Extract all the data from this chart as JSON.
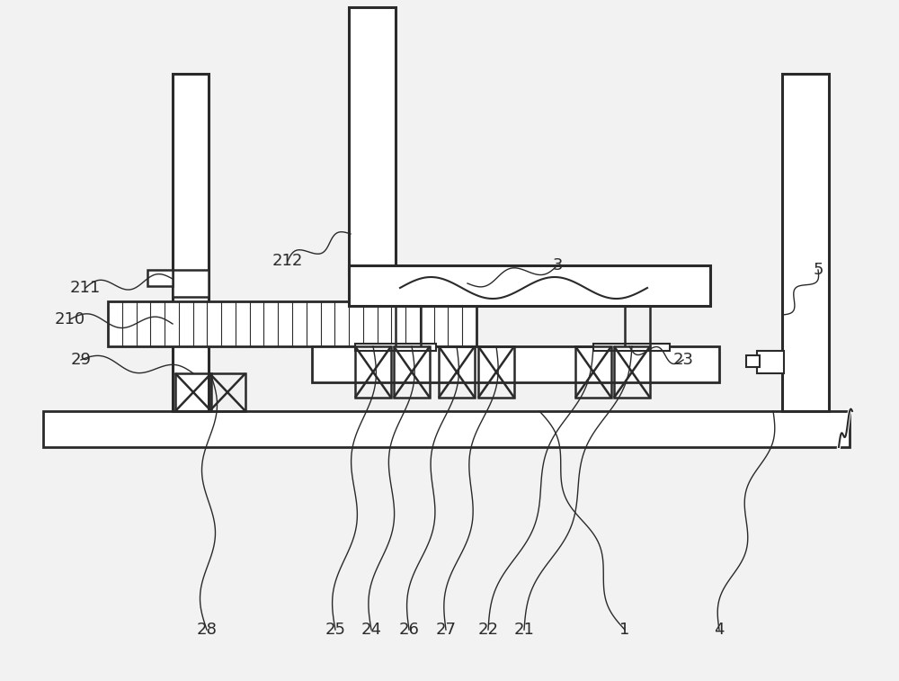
{
  "bg_color": "#f2f2f2",
  "line_color": "#2a2a2a",
  "fig_width": 10.0,
  "fig_height": 7.57
}
